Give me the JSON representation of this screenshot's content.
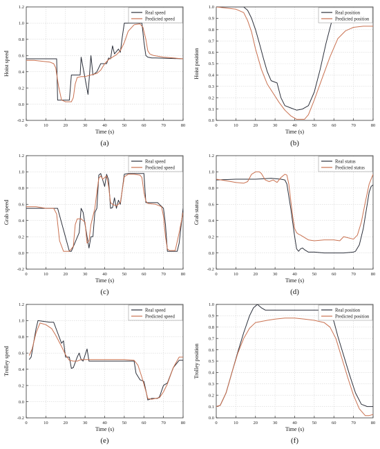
{
  "chart_data": [
    {
      "panel_label": "(a)",
      "type": "line",
      "xlabel": "Time (s)",
      "ylabel": "Hoist speed",
      "xlim": [
        0,
        80
      ],
      "ylim": [
        -0.2,
        1.2
      ],
      "xticks": [
        0,
        10,
        20,
        30,
        40,
        50,
        60,
        70,
        80
      ],
      "yticks": [
        -0.2,
        0.0,
        0.2,
        0.4,
        0.6,
        0.8,
        1.0,
        1.2
      ],
      "grid": true,
      "legend_position": "top-right",
      "series": [
        {
          "name": "Real speed",
          "color": "#2b2f3a",
          "x": [
            0,
            14.5,
            15.5,
            16,
            22,
            23,
            27.5,
            28,
            30,
            31.5,
            33,
            34,
            36,
            38,
            41,
            42,
            43,
            44,
            45,
            47,
            48,
            49,
            50,
            53,
            57,
            59,
            60,
            61,
            62,
            64,
            66,
            80
          ],
          "y": [
            0.56,
            0.56,
            0.56,
            0.05,
            0.05,
            0.36,
            0.36,
            0.58,
            0.32,
            0.12,
            0.6,
            0.36,
            0.4,
            0.5,
            0.5,
            0.57,
            0.56,
            0.72,
            0.62,
            0.68,
            0.64,
            0.83,
            1.0,
            1.0,
            1.0,
            1.0,
            0.77,
            0.6,
            0.58,
            0.57,
            0.57,
            0.56
          ]
        },
        {
          "name": "Predicted speed",
          "color": "#c9704f",
          "x": [
            0,
            4,
            8,
            12,
            14,
            15,
            16.5,
            18,
            20,
            23,
            24,
            25,
            26,
            28,
            30,
            33,
            36,
            38,
            40,
            42,
            44,
            46,
            48,
            50,
            52,
            55,
            58,
            59.5,
            61,
            62,
            63,
            65,
            70,
            75,
            80
          ],
          "y": [
            0.54,
            0.54,
            0.53,
            0.52,
            0.5,
            0.45,
            0.22,
            0.05,
            0.03,
            0.03,
            0.08,
            0.25,
            0.33,
            0.34,
            0.34,
            0.36,
            0.38,
            0.42,
            0.5,
            0.55,
            0.58,
            0.61,
            0.66,
            0.76,
            0.9,
            0.98,
            0.99,
            0.95,
            0.8,
            0.66,
            0.62,
            0.6,
            0.58,
            0.57,
            0.56
          ]
        }
      ]
    },
    {
      "panel_label": "(b)",
      "type": "line",
      "xlabel": "Time (s)",
      "ylabel": "Hoist position",
      "xlim": [
        0,
        80
      ],
      "ylim": [
        0.0,
        1.0
      ],
      "xticks": [
        0,
        10,
        20,
        30,
        40,
        50,
        60,
        70,
        80
      ],
      "yticks": [
        0.0,
        0.1,
        0.2,
        0.3,
        0.4,
        0.5,
        0.6,
        0.7,
        0.8,
        0.9,
        1.0
      ],
      "grid": true,
      "legend_position": "top-right",
      "series": [
        {
          "name": "Real position",
          "color": "#2b2f3a",
          "x": [
            0,
            14,
            16,
            18,
            20,
            22,
            24,
            26,
            28,
            31,
            33,
            35,
            38,
            41,
            44,
            47,
            50,
            53,
            56,
            59,
            62,
            65,
            68,
            70
          ],
          "y": [
            1.0,
            1.0,
            0.97,
            0.9,
            0.8,
            0.68,
            0.55,
            0.43,
            0.35,
            0.33,
            0.2,
            0.13,
            0.11,
            0.09,
            0.1,
            0.13,
            0.25,
            0.45,
            0.68,
            0.88,
            0.96,
            0.97,
            0.97,
            0.97
          ]
        },
        {
          "name": "Predicted position",
          "color": "#c9704f",
          "x": [
            0,
            10,
            14,
            16,
            18,
            20,
            23,
            26,
            29,
            32,
            35,
            38,
            41,
            45,
            47,
            50,
            54,
            58,
            62,
            66,
            70,
            75,
            80
          ],
          "y": [
            1.0,
            0.98,
            0.95,
            0.88,
            0.78,
            0.63,
            0.45,
            0.32,
            0.24,
            0.16,
            0.09,
            0.04,
            0.01,
            0.01,
            0.05,
            0.18,
            0.37,
            0.56,
            0.72,
            0.79,
            0.82,
            0.83,
            0.83
          ]
        }
      ]
    },
    {
      "panel_label": "(c)",
      "type": "line",
      "xlabel": "Time (s)",
      "ylabel": "Grab speed",
      "xlim": [
        0,
        80
      ],
      "ylim": [
        -0.2,
        1.2
      ],
      "xticks": [
        0,
        10,
        20,
        30,
        40,
        50,
        60,
        70,
        80
      ],
      "yticks": [
        -0.2,
        0.0,
        0.2,
        0.4,
        0.6,
        0.8,
        1.0,
        1.2
      ],
      "grid": true,
      "legend_position": "top-right",
      "series": [
        {
          "name": "Real speed",
          "color": "#2b2f3a",
          "x": [
            0,
            14.5,
            16,
            22,
            23,
            27,
            28,
            29,
            30,
            32,
            33,
            34,
            35,
            36,
            37,
            38,
            40,
            41,
            42,
            43,
            44,
            45,
            46,
            47,
            48,
            50,
            52,
            58,
            60,
            61,
            64,
            67,
            70,
            71,
            72,
            76,
            77,
            78,
            80
          ],
          "y": [
            0.55,
            0.55,
            0.55,
            0.02,
            0.02,
            0.25,
            0.55,
            0.5,
            0.35,
            0.06,
            0.2,
            0.2,
            0.5,
            0.55,
            0.96,
            0.98,
            0.82,
            0.97,
            0.9,
            0.55,
            0.56,
            0.68,
            0.55,
            0.65,
            0.6,
            0.97,
            0.98,
            0.98,
            0.98,
            0.62,
            0.62,
            0.62,
            0.55,
            0.35,
            0.02,
            0.02,
            0.02,
            0.12,
            0.55
          ]
        },
        {
          "name": "Predicted speed",
          "color": "#c9704f",
          "x": [
            0,
            5,
            10,
            14,
            15.5,
            17,
            19,
            22,
            24,
            25,
            26,
            28,
            30,
            31,
            32,
            33,
            35,
            36,
            37,
            38,
            39,
            40,
            41,
            42,
            43,
            44,
            46,
            48,
            50,
            52,
            55,
            58,
            59,
            60,
            61,
            62,
            66,
            69,
            70,
            71,
            72,
            73,
            76,
            78,
            80
          ],
          "y": [
            0.57,
            0.57,
            0.55,
            0.55,
            0.48,
            0.15,
            0.02,
            0.02,
            0.08,
            0.35,
            0.42,
            0.42,
            0.38,
            0.12,
            0.15,
            0.35,
            0.55,
            0.75,
            0.92,
            0.95,
            0.91,
            0.93,
            0.95,
            0.82,
            0.62,
            0.6,
            0.58,
            0.62,
            0.94,
            0.97,
            0.97,
            0.96,
            0.93,
            0.75,
            0.64,
            0.61,
            0.6,
            0.57,
            0.45,
            0.2,
            0.05,
            0.03,
            0.03,
            0.25,
            0.5
          ]
        }
      ]
    },
    {
      "panel_label": "(d)",
      "type": "line",
      "xlabel": "Time (s)",
      "ylabel": "Grab status",
      "xlim": [
        0,
        80
      ],
      "ylim": [
        -0.2,
        1.2
      ],
      "xticks": [
        0,
        10,
        20,
        30,
        40,
        50,
        60,
        70,
        80
      ],
      "yticks": [
        -0.2,
        0.0,
        0.2,
        0.4,
        0.6,
        0.8,
        1.0,
        1.2
      ],
      "grid": true,
      "legend_position": "top-right",
      "series": [
        {
          "name": "Real status",
          "color": "#2b2f3a",
          "x": [
            0,
            10,
            20,
            28,
            33,
            35,
            36,
            38,
            40,
            41,
            42,
            43,
            44,
            45,
            47,
            50,
            55,
            60,
            65,
            70,
            71,
            73,
            75,
            77,
            78,
            79,
            80
          ],
          "y": [
            0.9,
            0.91,
            0.91,
            0.92,
            0.91,
            0.9,
            0.85,
            0.55,
            0.2,
            0.05,
            0.02,
            0.05,
            0.06,
            0.04,
            0.01,
            0.01,
            0.0,
            0.0,
            0.0,
            0.01,
            0.02,
            0.1,
            0.3,
            0.6,
            0.75,
            0.82,
            0.84
          ]
        },
        {
          "name": "Predicted status",
          "color": "#c9704f",
          "x": [
            0,
            5,
            10,
            14,
            16,
            18,
            20,
            22,
            23,
            25,
            27,
            29,
            31,
            33,
            35,
            36,
            37,
            38,
            39,
            40,
            41,
            42,
            43,
            45,
            47,
            50,
            55,
            60,
            63,
            65,
            70,
            72,
            74,
            76,
            78,
            80
          ],
          "y": [
            0.91,
            0.89,
            0.87,
            0.86,
            0.88,
            0.97,
            1.0,
            1.0,
            0.98,
            0.9,
            0.88,
            0.9,
            0.87,
            0.93,
            0.97,
            0.96,
            0.85,
            0.65,
            0.45,
            0.3,
            0.25,
            0.23,
            0.22,
            0.19,
            0.16,
            0.15,
            0.16,
            0.16,
            0.15,
            0.2,
            0.17,
            0.22,
            0.38,
            0.62,
            0.85,
            0.97
          ]
        }
      ]
    },
    {
      "panel_label": "(e)",
      "type": "line",
      "xlabel": "Time (s)",
      "ylabel": "Trolley speed",
      "xlim": [
        0,
        80
      ],
      "ylim": [
        -0.2,
        1.2
      ],
      "xticks": [
        0,
        10,
        20,
        30,
        40,
        50,
        60,
        70,
        80
      ],
      "yticks": [
        -0.2,
        0.0,
        0.2,
        0.4,
        0.6,
        0.8,
        1.0,
        1.2
      ],
      "grid": true,
      "legend_position": "top-right",
      "series": [
        {
          "name": "Real speed",
          "color": "#2b2f3a",
          "x": [
            1.5,
            2.5,
            5,
            6,
            12,
            14,
            16,
            18,
            19,
            20,
            22,
            23,
            24,
            26,
            27,
            28,
            29,
            31,
            32,
            33,
            36,
            50,
            55,
            56,
            58,
            60,
            61,
            62,
            64,
            66,
            67,
            68,
            70,
            72,
            75,
            78,
            80
          ],
          "y": [
            0.52,
            0.55,
            0.9,
            1.0,
            0.98,
            0.98,
            0.85,
            0.72,
            0.75,
            0.55,
            0.55,
            0.41,
            0.42,
            0.55,
            0.6,
            0.52,
            0.5,
            0.65,
            0.5,
            0.5,
            0.5,
            0.5,
            0.5,
            0.35,
            0.27,
            0.25,
            0.14,
            0.02,
            0.04,
            0.04,
            0.04,
            0.06,
            0.2,
            0.23,
            0.42,
            0.51,
            0.51
          ]
        },
        {
          "name": "Predicted speed",
          "color": "#c9704f",
          "x": [
            1.5,
            3,
            5,
            7,
            10,
            13,
            15,
            18,
            20,
            22,
            24,
            26,
            28,
            30,
            34,
            40,
            50,
            55,
            57,
            59,
            61,
            62,
            64,
            66,
            68,
            70,
            72,
            75,
            78,
            80
          ],
          "y": [
            0.57,
            0.65,
            0.85,
            0.97,
            0.95,
            0.9,
            0.82,
            0.68,
            0.58,
            0.51,
            0.5,
            0.5,
            0.52,
            0.52,
            0.52,
            0.52,
            0.52,
            0.51,
            0.45,
            0.3,
            0.13,
            0.04,
            0.03,
            0.04,
            0.05,
            0.12,
            0.22,
            0.42,
            0.55,
            0.55
          ]
        }
      ]
    },
    {
      "panel_label": "(f)",
      "type": "line",
      "xlabel": "Time (s)",
      "ylabel": "Trolley position",
      "xlim": [
        0,
        80
      ],
      "ylim": [
        0.0,
        1.0
      ],
      "xticks": [
        0,
        10,
        20,
        30,
        40,
        50,
        60,
        70,
        80
      ],
      "yticks": [
        0.0,
        0.1,
        0.2,
        0.3,
        0.4,
        0.5,
        0.6,
        0.7,
        0.8,
        0.9,
        1.0
      ],
      "grid": true,
      "legend_position": "top-right",
      "series": [
        {
          "name": "Real position",
          "color": "#2b2f3a",
          "x": [
            0,
            2,
            5,
            8,
            11,
            14,
            17,
            19,
            21,
            23,
            25,
            30,
            40,
            50,
            55,
            58,
            60,
            62,
            65,
            68,
            71,
            74,
            77,
            80
          ],
          "y": [
            0.1,
            0.11,
            0.22,
            0.4,
            0.58,
            0.75,
            0.9,
            0.97,
            1.0,
            0.97,
            0.95,
            0.95,
            0.95,
            0.95,
            0.95,
            0.92,
            0.85,
            0.72,
            0.55,
            0.38,
            0.22,
            0.12,
            0.1,
            0.1
          ]
        },
        {
          "name": "Predicted position",
          "color": "#c9704f",
          "x": [
            0,
            2,
            5,
            8,
            11,
            14,
            17,
            20,
            23,
            26,
            30,
            35,
            40,
            45,
            50,
            55,
            58,
            61,
            64,
            67,
            70,
            73,
            76,
            78,
            80
          ],
          "y": [
            0.1,
            0.11,
            0.22,
            0.4,
            0.57,
            0.7,
            0.79,
            0.84,
            0.85,
            0.86,
            0.87,
            0.88,
            0.88,
            0.87,
            0.86,
            0.84,
            0.8,
            0.7,
            0.53,
            0.36,
            0.2,
            0.08,
            0.02,
            0.02,
            0.03
          ]
        }
      ]
    }
  ]
}
